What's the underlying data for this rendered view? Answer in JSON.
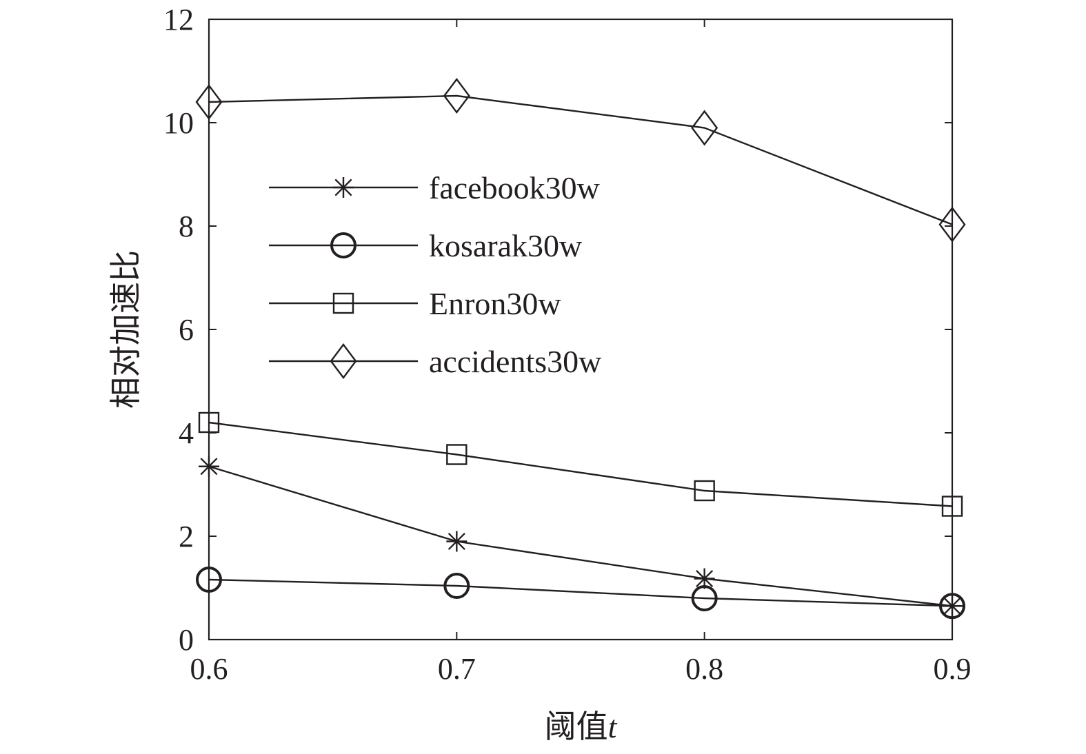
{
  "chart_data": {
    "type": "line",
    "title": "",
    "xlabel": "阈值",
    "xlabel_italic_suffix": "t",
    "ylabel": "相对加速比",
    "x": [
      0.6,
      0.7,
      0.8,
      0.9
    ],
    "x_tick_labels": [
      "0.6",
      "0.7",
      "0.8",
      "0.9"
    ],
    "xlim": [
      0.6,
      0.9
    ],
    "ylim": [
      0,
      12
    ],
    "y_ticks": [
      0,
      2,
      4,
      6,
      8,
      10,
      12
    ],
    "y_tick_labels": [
      "0",
      "2",
      "4",
      "6",
      "8",
      "10",
      "12"
    ],
    "grid": false,
    "legend_position": "upper-left inside axes",
    "line_color": "#231f20",
    "series": [
      {
        "name": "facebook30w",
        "marker": "asterisk",
        "values": [
          3.35,
          1.9,
          1.18,
          0.65
        ]
      },
      {
        "name": "kosarak30w",
        "marker": "circle",
        "values": [
          1.16,
          1.04,
          0.8,
          0.65
        ]
      },
      {
        "name": "Enron30w",
        "marker": "square",
        "values": [
          4.2,
          3.58,
          2.88,
          2.58
        ]
      },
      {
        "name": "accidents30w",
        "marker": "diamond",
        "values": [
          10.4,
          10.52,
          9.9,
          8.03
        ]
      }
    ]
  }
}
